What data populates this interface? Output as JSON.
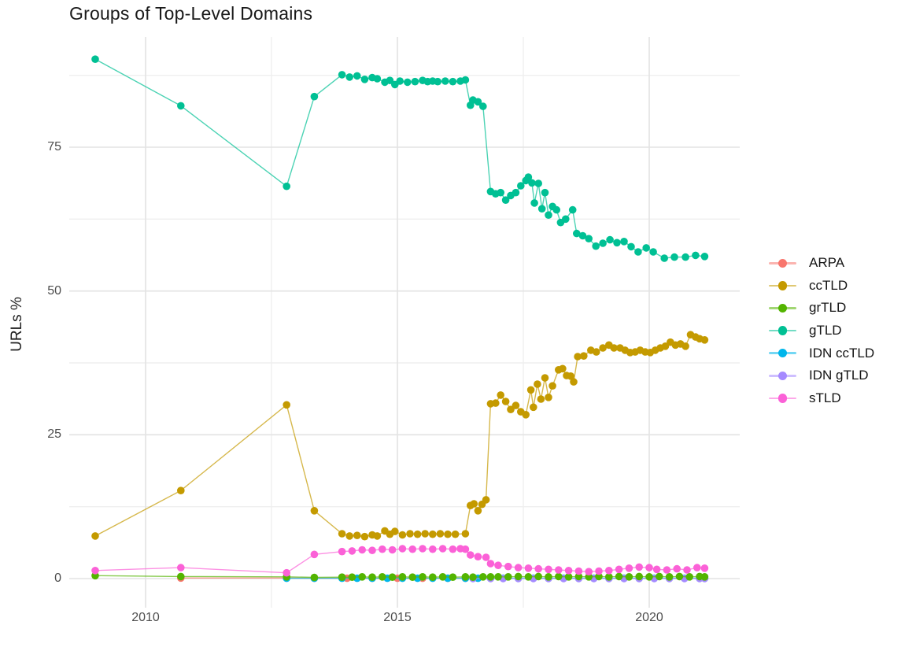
{
  "chart": {
    "title": "Groups of Top-Level Domains",
    "y_axis_title": "URLs %"
  },
  "colors": {
    "major_grid": "#e3e3e3",
    "minor_grid": "#efefef",
    "tick_text": "#4d4d4d",
    "title_text": "#1a1a1a"
  },
  "chart_data": {
    "type": "line",
    "title": "Groups of Top-Level Domains",
    "xlabel": "",
    "ylabel": "URLs %",
    "grid": true,
    "legend_position": "right",
    "x_range_years": [
      2008.5,
      2021.8
    ],
    "ylim": [
      -5,
      94
    ],
    "axes": {
      "x_major_ticks": [
        2010,
        2015,
        2020
      ],
      "x_tick_labels": [
        "2010",
        "2015",
        "2020"
      ],
      "x_minor_ticks": [
        2012.5,
        2017.5
      ],
      "y_major_ticks": [
        0,
        25,
        50,
        75
      ],
      "y_tick_labels": [
        "0",
        "25",
        "50",
        "75"
      ],
      "y_minor_ticks": [
        12.5,
        37.5,
        62.5,
        87.5
      ]
    },
    "draw_order": [
      "ARPA",
      "IDN ccTLD",
      "IDN gTLD",
      "grTLD",
      "ccTLD",
      "gTLD",
      "sTLD"
    ],
    "series": [
      {
        "name": "ARPA",
        "color": "#F8766D",
        "points": [
          [
            2010.7,
            0.1
          ],
          [
            2012.8,
            0.1
          ],
          [
            2013.35,
            0.05
          ],
          [
            2014.0,
            0.05
          ],
          [
            2014.5,
            0.05
          ],
          [
            2015.0,
            0.05
          ],
          [
            2015.5,
            0.05
          ],
          [
            2016.0,
            0.05
          ],
          [
            2016.35,
            0.05
          ]
        ]
      },
      {
        "name": "ccTLD",
        "color": "#C49A00",
        "points": [
          [
            2009.0,
            7.4
          ],
          [
            2010.7,
            15.3
          ],
          [
            2012.8,
            30.2
          ],
          [
            2013.35,
            11.8
          ],
          [
            2013.9,
            7.8
          ],
          [
            2014.05,
            7.4
          ],
          [
            2014.2,
            7.5
          ],
          [
            2014.35,
            7.3
          ],
          [
            2014.5,
            7.6
          ],
          [
            2014.6,
            7.4
          ],
          [
            2014.75,
            8.3
          ],
          [
            2014.85,
            7.7
          ],
          [
            2014.95,
            8.2
          ],
          [
            2015.1,
            7.6
          ],
          [
            2015.25,
            7.8
          ],
          [
            2015.4,
            7.7
          ],
          [
            2015.55,
            7.8
          ],
          [
            2015.7,
            7.7
          ],
          [
            2015.85,
            7.8
          ],
          [
            2016.0,
            7.7
          ],
          [
            2016.15,
            7.7
          ],
          [
            2016.35,
            7.8
          ],
          [
            2016.45,
            12.7
          ],
          [
            2016.52,
            13.0
          ],
          [
            2016.6,
            11.8
          ],
          [
            2016.68,
            12.9
          ],
          [
            2016.76,
            13.7
          ],
          [
            2016.85,
            30.4
          ],
          [
            2016.95,
            30.5
          ],
          [
            2017.05,
            31.9
          ],
          [
            2017.15,
            30.8
          ],
          [
            2017.25,
            29.4
          ],
          [
            2017.35,
            30.1
          ],
          [
            2017.45,
            29.0
          ],
          [
            2017.55,
            28.5
          ],
          [
            2017.65,
            32.8
          ],
          [
            2017.7,
            29.8
          ],
          [
            2017.78,
            33.8
          ],
          [
            2017.85,
            31.2
          ],
          [
            2017.93,
            34.9
          ],
          [
            2018.0,
            31.5
          ],
          [
            2018.08,
            33.5
          ],
          [
            2018.2,
            36.3
          ],
          [
            2018.28,
            36.5
          ],
          [
            2018.36,
            35.3
          ],
          [
            2018.44,
            35.2
          ],
          [
            2018.5,
            34.2
          ],
          [
            2018.58,
            38.6
          ],
          [
            2018.7,
            38.7
          ],
          [
            2018.84,
            39.7
          ],
          [
            2018.95,
            39.4
          ],
          [
            2019.08,
            40.1
          ],
          [
            2019.2,
            40.6
          ],
          [
            2019.3,
            40.1
          ],
          [
            2019.42,
            40.1
          ],
          [
            2019.52,
            39.7
          ],
          [
            2019.62,
            39.3
          ],
          [
            2019.72,
            39.4
          ],
          [
            2019.82,
            39.7
          ],
          [
            2019.92,
            39.4
          ],
          [
            2020.02,
            39.3
          ],
          [
            2020.12,
            39.7
          ],
          [
            2020.22,
            40.1
          ],
          [
            2020.32,
            40.4
          ],
          [
            2020.42,
            41.1
          ],
          [
            2020.52,
            40.6
          ],
          [
            2020.62,
            40.8
          ],
          [
            2020.72,
            40.4
          ],
          [
            2020.82,
            42.4
          ],
          [
            2020.92,
            42.0
          ],
          [
            2021.0,
            41.7
          ],
          [
            2021.1,
            41.5
          ]
        ]
      },
      {
        "name": "grTLD",
        "color": "#53B400",
        "points": [
          [
            2009.0,
            0.5
          ],
          [
            2010.7,
            0.35
          ],
          [
            2012.8,
            0.3
          ],
          [
            2013.35,
            0.2
          ],
          [
            2013.9,
            0.25
          ],
          [
            2014.1,
            0.25
          ],
          [
            2014.3,
            0.3
          ],
          [
            2014.5,
            0.25
          ],
          [
            2014.7,
            0.3
          ],
          [
            2014.9,
            0.25
          ],
          [
            2015.1,
            0.3
          ],
          [
            2015.3,
            0.25
          ],
          [
            2015.5,
            0.3
          ],
          [
            2015.7,
            0.25
          ],
          [
            2015.9,
            0.3
          ],
          [
            2016.1,
            0.25
          ],
          [
            2016.35,
            0.3
          ],
          [
            2016.5,
            0.25
          ],
          [
            2016.7,
            0.3
          ],
          [
            2016.85,
            0.3
          ],
          [
            2017.0,
            0.3
          ],
          [
            2017.2,
            0.3
          ],
          [
            2017.4,
            0.35
          ],
          [
            2017.6,
            0.3
          ],
          [
            2017.8,
            0.35
          ],
          [
            2018.0,
            0.3
          ],
          [
            2018.2,
            0.35
          ],
          [
            2018.4,
            0.3
          ],
          [
            2018.6,
            0.35
          ],
          [
            2018.8,
            0.3
          ],
          [
            2019.0,
            0.35
          ],
          [
            2019.2,
            0.3
          ],
          [
            2019.4,
            0.35
          ],
          [
            2019.6,
            0.3
          ],
          [
            2019.8,
            0.35
          ],
          [
            2020.0,
            0.3
          ],
          [
            2020.2,
            0.35
          ],
          [
            2020.4,
            0.3
          ],
          [
            2020.6,
            0.35
          ],
          [
            2020.8,
            0.3
          ],
          [
            2021.0,
            0.35
          ],
          [
            2021.1,
            0.3
          ]
        ]
      },
      {
        "name": "gTLD",
        "color": "#00C094",
        "points": [
          [
            2009.0,
            90.3
          ],
          [
            2010.7,
            82.2
          ],
          [
            2012.8,
            68.2
          ],
          [
            2013.35,
            83.8
          ],
          [
            2013.9,
            87.6
          ],
          [
            2014.05,
            87.2
          ],
          [
            2014.2,
            87.4
          ],
          [
            2014.35,
            86.8
          ],
          [
            2014.5,
            87.1
          ],
          [
            2014.6,
            86.9
          ],
          [
            2014.75,
            86.3
          ],
          [
            2014.85,
            86.6
          ],
          [
            2014.95,
            85.9
          ],
          [
            2015.05,
            86.5
          ],
          [
            2015.2,
            86.3
          ],
          [
            2015.35,
            86.4
          ],
          [
            2015.5,
            86.6
          ],
          [
            2015.6,
            86.4
          ],
          [
            2015.7,
            86.5
          ],
          [
            2015.8,
            86.4
          ],
          [
            2015.95,
            86.5
          ],
          [
            2016.1,
            86.4
          ],
          [
            2016.25,
            86.5
          ],
          [
            2016.35,
            86.7
          ],
          [
            2016.45,
            82.3
          ],
          [
            2016.5,
            83.2
          ],
          [
            2016.6,
            82.9
          ],
          [
            2016.7,
            82.1
          ],
          [
            2016.85,
            67.3
          ],
          [
            2016.95,
            66.9
          ],
          [
            2017.05,
            67.1
          ],
          [
            2017.15,
            65.8
          ],
          [
            2017.25,
            66.6
          ],
          [
            2017.35,
            67.1
          ],
          [
            2017.45,
            68.3
          ],
          [
            2017.55,
            69.2
          ],
          [
            2017.6,
            69.8
          ],
          [
            2017.67,
            68.8
          ],
          [
            2017.72,
            65.3
          ],
          [
            2017.8,
            68.7
          ],
          [
            2017.87,
            64.3
          ],
          [
            2017.93,
            67.1
          ],
          [
            2018.0,
            63.2
          ],
          [
            2018.08,
            64.7
          ],
          [
            2018.16,
            64.1
          ],
          [
            2018.24,
            61.9
          ],
          [
            2018.34,
            62.5
          ],
          [
            2018.48,
            64.1
          ],
          [
            2018.56,
            60.0
          ],
          [
            2018.68,
            59.6
          ],
          [
            2018.8,
            59.1
          ],
          [
            2018.94,
            57.8
          ],
          [
            2019.08,
            58.3
          ],
          [
            2019.22,
            58.9
          ],
          [
            2019.36,
            58.4
          ],
          [
            2019.5,
            58.6
          ],
          [
            2019.64,
            57.7
          ],
          [
            2019.78,
            56.8
          ],
          [
            2019.94,
            57.5
          ],
          [
            2020.08,
            56.8
          ],
          [
            2020.3,
            55.7
          ],
          [
            2020.5,
            55.9
          ],
          [
            2020.72,
            55.9
          ],
          [
            2020.92,
            56.2
          ],
          [
            2021.1,
            56.0
          ]
        ]
      },
      {
        "name": "IDN ccTLD",
        "color": "#00B6EB",
        "points": [
          [
            2012.8,
            0.05
          ],
          [
            2013.35,
            0.05
          ],
          [
            2013.9,
            0.05
          ],
          [
            2014.2,
            0.05
          ],
          [
            2014.5,
            0.05
          ],
          [
            2014.8,
            0.05
          ],
          [
            2015.1,
            0.05
          ],
          [
            2015.4,
            0.05
          ],
          [
            2015.7,
            0.05
          ],
          [
            2016.0,
            0.05
          ],
          [
            2016.35,
            0.05
          ],
          [
            2016.6,
            0.05
          ],
          [
            2016.85,
            0.05
          ],
          [
            2017.1,
            0.05
          ],
          [
            2017.4,
            0.05
          ],
          [
            2017.7,
            0.05
          ],
          [
            2018.0,
            0.05
          ],
          [
            2018.3,
            0.05
          ],
          [
            2018.6,
            0.05
          ],
          [
            2018.9,
            0.05
          ],
          [
            2019.2,
            0.05
          ],
          [
            2019.5,
            0.05
          ],
          [
            2019.8,
            0.05
          ],
          [
            2020.1,
            0.05
          ],
          [
            2020.4,
            0.05
          ],
          [
            2020.7,
            0.05
          ],
          [
            2021.0,
            0.05
          ],
          [
            2021.1,
            0.05
          ]
        ]
      },
      {
        "name": "IDN gTLD",
        "color": "#A58AFF",
        "points": [
          [
            2016.5,
            0.02
          ],
          [
            2016.85,
            0.02
          ],
          [
            2017.1,
            0.02
          ],
          [
            2017.4,
            0.02
          ],
          [
            2017.7,
            0.02
          ],
          [
            2018.0,
            0.02
          ],
          [
            2018.3,
            0.02
          ],
          [
            2018.6,
            0.02
          ],
          [
            2018.9,
            0.02
          ],
          [
            2019.2,
            0.02
          ],
          [
            2019.5,
            0.02
          ],
          [
            2019.8,
            0.02
          ],
          [
            2020.1,
            0.02
          ],
          [
            2020.4,
            0.02
          ],
          [
            2020.7,
            0.02
          ],
          [
            2021.0,
            0.02
          ],
          [
            2021.1,
            0.02
          ]
        ]
      },
      {
        "name": "sTLD",
        "color": "#FB61D7",
        "points": [
          [
            2009.0,
            1.4
          ],
          [
            2010.7,
            1.9
          ],
          [
            2012.8,
            1.0
          ],
          [
            2013.35,
            4.2
          ],
          [
            2013.9,
            4.7
          ],
          [
            2014.1,
            4.8
          ],
          [
            2014.3,
            5.0
          ],
          [
            2014.5,
            4.9
          ],
          [
            2014.7,
            5.1
          ],
          [
            2014.9,
            5.0
          ],
          [
            2015.1,
            5.2
          ],
          [
            2015.3,
            5.1
          ],
          [
            2015.5,
            5.2
          ],
          [
            2015.7,
            5.1
          ],
          [
            2015.9,
            5.2
          ],
          [
            2016.1,
            5.1
          ],
          [
            2016.25,
            5.2
          ],
          [
            2016.35,
            5.1
          ],
          [
            2016.45,
            4.1
          ],
          [
            2016.6,
            3.8
          ],
          [
            2016.76,
            3.7
          ],
          [
            2016.85,
            2.6
          ],
          [
            2017.0,
            2.3
          ],
          [
            2017.2,
            2.1
          ],
          [
            2017.4,
            1.9
          ],
          [
            2017.6,
            1.8
          ],
          [
            2017.8,
            1.7
          ],
          [
            2018.0,
            1.6
          ],
          [
            2018.2,
            1.5
          ],
          [
            2018.4,
            1.4
          ],
          [
            2018.6,
            1.3
          ],
          [
            2018.8,
            1.2
          ],
          [
            2019.0,
            1.3
          ],
          [
            2019.2,
            1.4
          ],
          [
            2019.4,
            1.6
          ],
          [
            2019.6,
            1.8
          ],
          [
            2019.8,
            2.0
          ],
          [
            2020.0,
            1.9
          ],
          [
            2020.15,
            1.6
          ],
          [
            2020.35,
            1.5
          ],
          [
            2020.55,
            1.7
          ],
          [
            2020.75,
            1.5
          ],
          [
            2020.95,
            1.9
          ],
          [
            2021.1,
            1.8
          ]
        ]
      }
    ]
  }
}
